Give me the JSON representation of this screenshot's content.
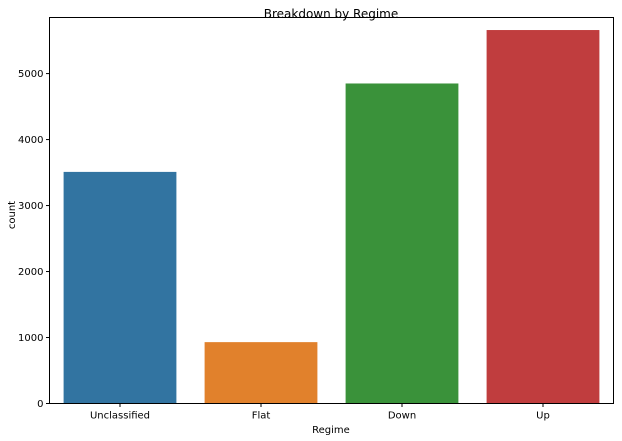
{
  "chart_data": {
    "type": "bar",
    "title": "Breakdown by Regime",
    "xlabel": "Regime",
    "ylabel": "count",
    "categories": [
      "Unclassified",
      "Flat",
      "Down",
      "Up"
    ],
    "values": [
      3510,
      930,
      4850,
      5660
    ],
    "colors": [
      "#3274a1",
      "#e1812c",
      "#3a923a",
      "#c03d3e"
    ],
    "ylim": [
      0,
      5850
    ],
    "yticks": [
      0,
      1000,
      2000,
      3000,
      4000,
      5000
    ],
    "ytick_labels": [
      "0",
      "1000",
      "2000",
      "3000",
      "4000",
      "5000"
    ],
    "grid": false
  }
}
